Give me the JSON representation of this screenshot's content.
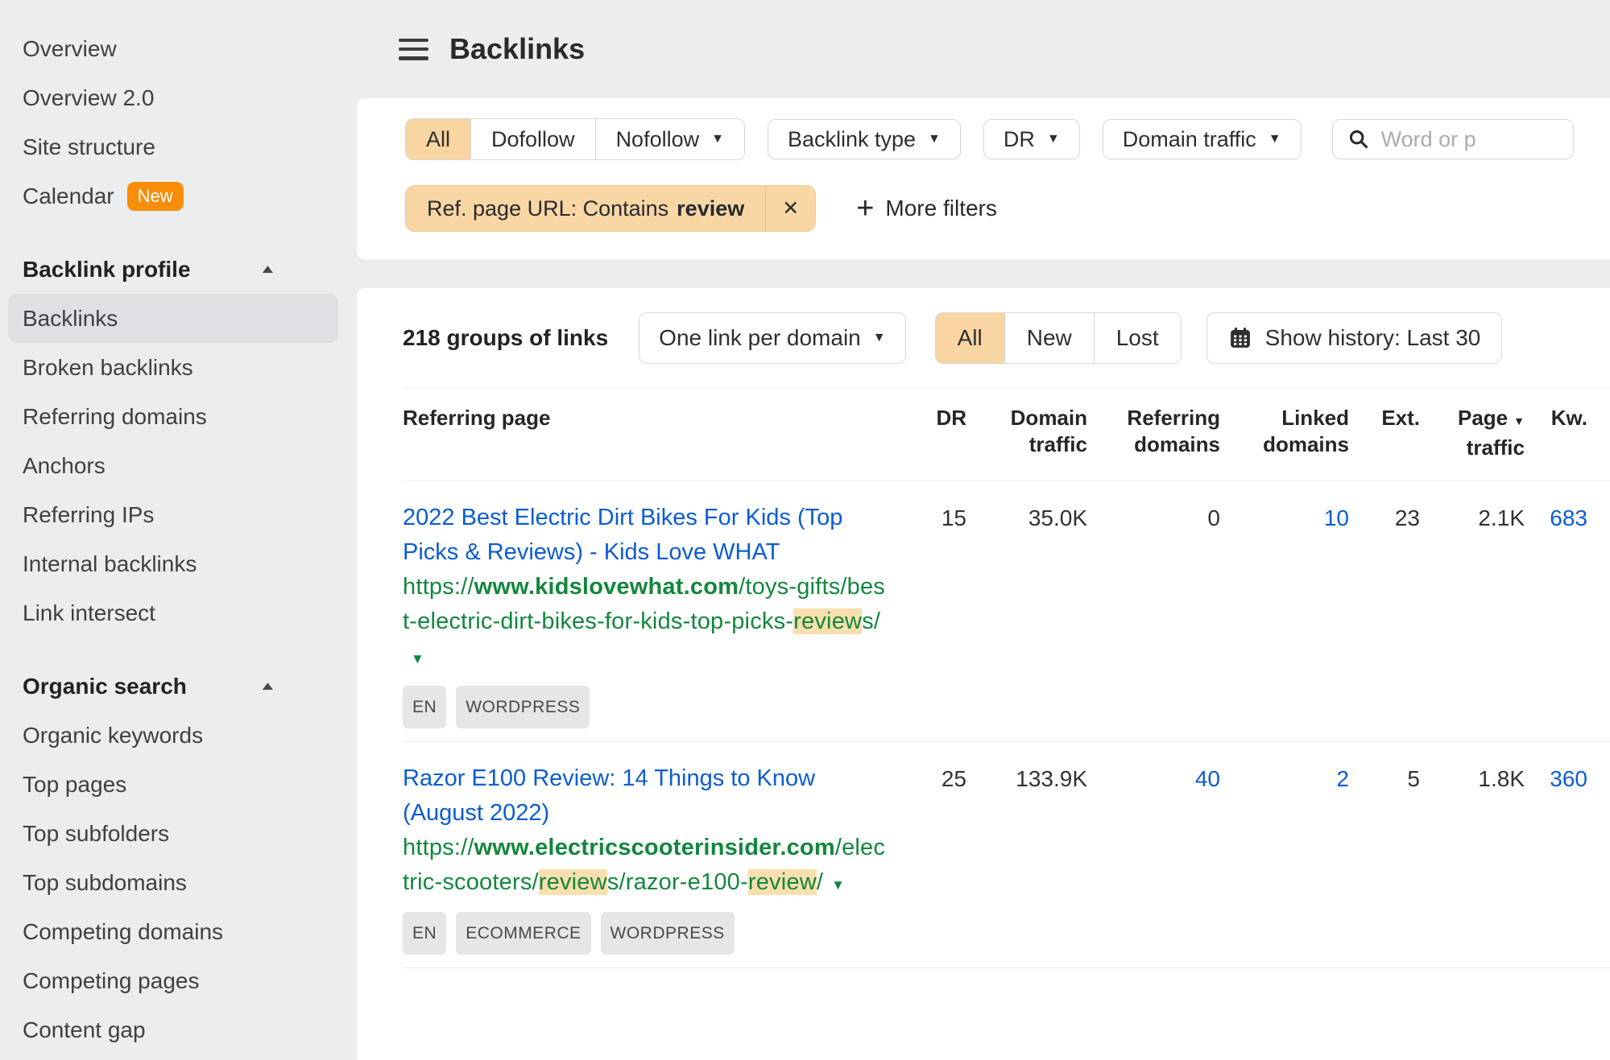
{
  "colors": {
    "accent_orange": "#f88d0a",
    "selection_tan": "#f8d5a1",
    "highlight_tan": "#fadfae",
    "link_blue": "#0b5cd5",
    "url_green": "#12873d"
  },
  "glyphs": {
    "caret_down": "▼",
    "collapse_up": "▲",
    "close": "✕",
    "plus": "+"
  },
  "header": {
    "title": "Backlinks"
  },
  "sidebar": {
    "top_items": [
      {
        "label": "Overview"
      },
      {
        "label": "Overview 2.0"
      },
      {
        "label": "Site structure"
      },
      {
        "label": "Calendar",
        "badge": "New"
      }
    ],
    "sections": [
      {
        "title": "Backlink profile",
        "selected": "Backlinks",
        "items": [
          "Backlinks",
          "Broken backlinks",
          "Referring domains",
          "Anchors",
          "Referring IPs",
          "Internal backlinks",
          "Link intersect"
        ]
      },
      {
        "title": "Organic search",
        "items": [
          "Organic keywords",
          "Top pages",
          "Top subfolders",
          "Top subdomains",
          "Competing domains",
          "Competing pages",
          "Content gap"
        ]
      }
    ]
  },
  "filters": {
    "segments": [
      {
        "label": "All",
        "selected": true
      },
      {
        "label": "Dofollow"
      },
      {
        "label": "Nofollow",
        "caret": true
      }
    ],
    "dropdowns": [
      {
        "label": "Backlink type"
      },
      {
        "label": "DR"
      },
      {
        "label": "Domain traffic"
      }
    ],
    "search_placeholder": "Word or p",
    "chip": {
      "label": "Ref. page URL: Contains",
      "value": "review"
    },
    "more_filters_label": "More filters"
  },
  "toolbar": {
    "count_text": "218 groups of links",
    "group_dropdown": {
      "label": "One link per domain"
    },
    "segments": [
      {
        "label": "All",
        "selected": true
      },
      {
        "label": "New"
      },
      {
        "label": "Lost"
      }
    ],
    "history_label": "Show history: Last 30"
  },
  "table": {
    "columns": [
      {
        "line1": "Referring page",
        "align": "left"
      },
      {
        "line1": "DR"
      },
      {
        "line1": "Domain",
        "line2": "traffic"
      },
      {
        "line1": "Referring",
        "line2": "domains"
      },
      {
        "line1": "Linked",
        "line2": "domains"
      },
      {
        "line1": "Ext."
      },
      {
        "line1": "Page",
        "line2": "traffic",
        "sorted": true
      },
      {
        "line1": "Kw."
      }
    ],
    "rows": [
      {
        "title": "2022 Best Electric Dirt Bikes For Kids (Top Picks & Reviews) - Kids Love WHAT",
        "url_segments": [
          {
            "text": "https://"
          },
          {
            "text": "www.kidslovewhat.com",
            "bold": true
          },
          {
            "text": "/toys-gifts/best-electric-dirt-bikes-for-kids-top-picks-"
          },
          {
            "text": "review",
            "highlight": true
          },
          {
            "text": "s/"
          }
        ],
        "badges": [
          "EN",
          "WORDPRESS"
        ],
        "metrics": [
          {
            "name": "dr",
            "value": "15"
          },
          {
            "name": "domain-traffic",
            "value": "35.0K"
          },
          {
            "name": "referring-domains",
            "value": "0"
          },
          {
            "name": "linked-domains",
            "value": "10",
            "link": true
          },
          {
            "name": "ext",
            "value": "23"
          },
          {
            "name": "page-traffic",
            "value": "2.1K"
          },
          {
            "name": "kw",
            "value": "683",
            "link": true
          }
        ]
      },
      {
        "title": "Razor E100 Review: 14 Things to Know (August 2022)",
        "url_segments": [
          {
            "text": "https://"
          },
          {
            "text": "www.electricscooterinsider.com",
            "bold": true
          },
          {
            "text": "/electric-scooters/"
          },
          {
            "text": "review",
            "highlight": true
          },
          {
            "text": "s/razor-e100-"
          },
          {
            "text": "review",
            "highlight": true
          },
          {
            "text": "/"
          }
        ],
        "badges": [
          "EN",
          "ECOMMERCE",
          "WORDPRESS"
        ],
        "metrics": [
          {
            "name": "dr",
            "value": "25"
          },
          {
            "name": "domain-traffic",
            "value": "133.9K"
          },
          {
            "name": "referring-domains",
            "value": "40",
            "link": true
          },
          {
            "name": "linked-domains",
            "value": "2",
            "link": true
          },
          {
            "name": "ext",
            "value": "5"
          },
          {
            "name": "page-traffic",
            "value": "1.8K"
          },
          {
            "name": "kw",
            "value": "360",
            "link": true
          }
        ]
      }
    ]
  }
}
